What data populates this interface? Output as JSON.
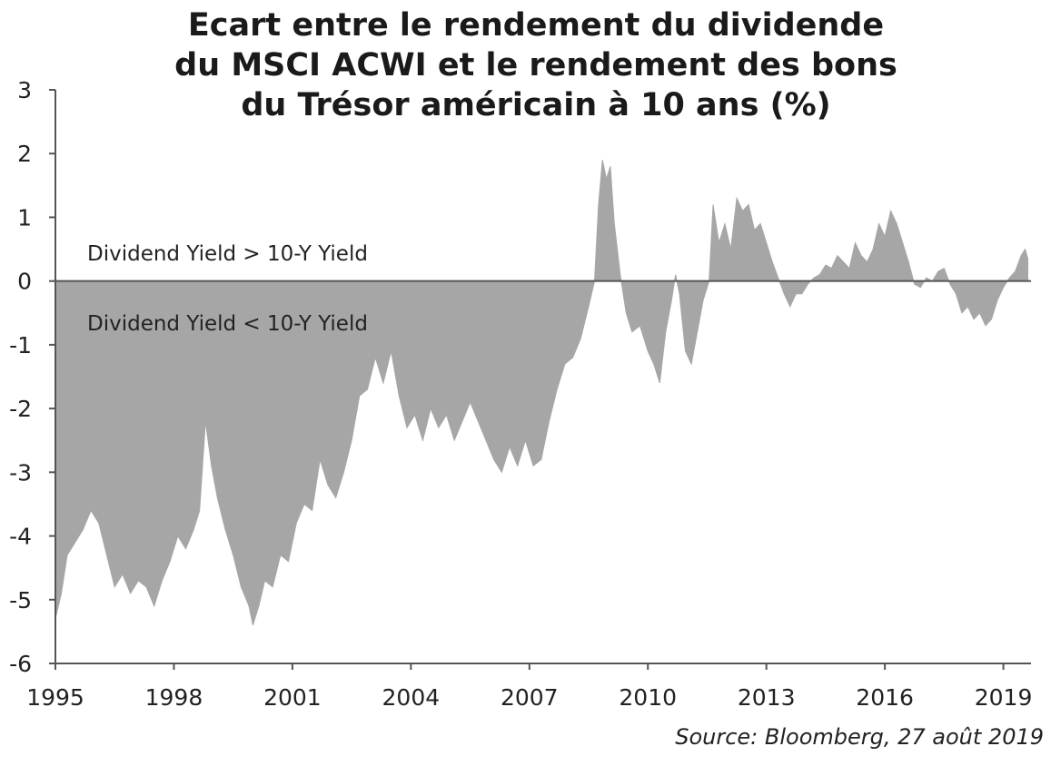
{
  "chart_data": {
    "type": "area",
    "title_lines": [
      "Ecart entre le rendement du dividende",
      "du MSCI ACWI et le rendement des bons",
      "du Trésor américain à 10 ans (%)"
    ],
    "xlabel": "",
    "ylabel": "",
    "x_ticks": [
      "1995",
      "1998",
      "2001",
      "2004",
      "2007",
      "2010",
      "2013",
      "2016",
      "2019"
    ],
    "x_tick_values": [
      1995,
      1998,
      2001,
      2004,
      2007,
      2010,
      2013,
      2016,
      2019
    ],
    "y_ticks": [
      "3",
      "2",
      "1",
      "0",
      "-1",
      "-2",
      "-3",
      "-4",
      "-5",
      "-6"
    ],
    "y_tick_values": [
      3,
      2,
      1,
      0,
      -1,
      -2,
      -3,
      -4,
      -5,
      -6
    ],
    "xlim": [
      1995,
      2019.7
    ],
    "ylim": [
      -6,
      3
    ],
    "annotations": {
      "above": "Dividend Yield > 10-Y Yield",
      "below": "Dividend Yield < 10-Y Yield"
    },
    "series": [
      {
        "fill_color": "#a6a6a6",
        "points": [
          [
            1995.0,
            -5.3
          ],
          [
            1995.15,
            -4.9
          ],
          [
            1995.3,
            -4.3
          ],
          [
            1995.5,
            -4.1
          ],
          [
            1995.7,
            -3.9
          ],
          [
            1995.9,
            -3.6
          ],
          [
            1996.1,
            -3.8
          ],
          [
            1996.3,
            -4.3
          ],
          [
            1996.5,
            -4.8
          ],
          [
            1996.7,
            -4.6
          ],
          [
            1996.9,
            -4.9
          ],
          [
            1997.1,
            -4.7
          ],
          [
            1997.3,
            -4.8
          ],
          [
            1997.5,
            -5.1
          ],
          [
            1997.7,
            -4.7
          ],
          [
            1997.9,
            -4.4
          ],
          [
            1998.1,
            -4.0
          ],
          [
            1998.3,
            -4.2
          ],
          [
            1998.5,
            -3.9
          ],
          [
            1998.65,
            -3.6
          ],
          [
            1998.8,
            -2.2
          ],
          [
            1998.95,
            -2.9
          ],
          [
            1999.1,
            -3.4
          ],
          [
            1999.3,
            -3.9
          ],
          [
            1999.5,
            -4.3
          ],
          [
            1999.7,
            -4.8
          ],
          [
            1999.9,
            -5.1
          ],
          [
            2000.0,
            -5.4
          ],
          [
            2000.15,
            -5.1
          ],
          [
            2000.3,
            -4.7
          ],
          [
            2000.5,
            -4.8
          ],
          [
            2000.7,
            -4.3
          ],
          [
            2000.9,
            -4.4
          ],
          [
            2001.1,
            -3.8
          ],
          [
            2001.3,
            -3.5
          ],
          [
            2001.5,
            -3.6
          ],
          [
            2001.7,
            -2.8
          ],
          [
            2001.9,
            -3.2
          ],
          [
            2002.1,
            -3.4
          ],
          [
            2002.3,
            -3.0
          ],
          [
            2002.5,
            -2.5
          ],
          [
            2002.7,
            -1.8
          ],
          [
            2002.9,
            -1.7
          ],
          [
            2003.1,
            -1.2
          ],
          [
            2003.3,
            -1.6
          ],
          [
            2003.5,
            -1.1
          ],
          [
            2003.7,
            -1.8
          ],
          [
            2003.9,
            -2.3
          ],
          [
            2004.1,
            -2.1
          ],
          [
            2004.3,
            -2.5
          ],
          [
            2004.5,
            -2.0
          ],
          [
            2004.7,
            -2.3
          ],
          [
            2004.9,
            -2.1
          ],
          [
            2005.1,
            -2.5
          ],
          [
            2005.3,
            -2.2
          ],
          [
            2005.5,
            -1.9
          ],
          [
            2005.7,
            -2.2
          ],
          [
            2005.9,
            -2.5
          ],
          [
            2006.1,
            -2.8
          ],
          [
            2006.3,
            -3.0
          ],
          [
            2006.5,
            -2.6
          ],
          [
            2006.7,
            -2.9
          ],
          [
            2006.9,
            -2.5
          ],
          [
            2007.1,
            -2.9
          ],
          [
            2007.3,
            -2.8
          ],
          [
            2007.5,
            -2.2
          ],
          [
            2007.7,
            -1.7
          ],
          [
            2007.9,
            -1.3
          ],
          [
            2008.1,
            -1.2
          ],
          [
            2008.3,
            -0.9
          ],
          [
            2008.5,
            -0.4
          ],
          [
            2008.65,
            0.0
          ],
          [
            2008.75,
            1.2
          ],
          [
            2008.85,
            1.9
          ],
          [
            2008.95,
            1.6
          ],
          [
            2009.05,
            1.8
          ],
          [
            2009.15,
            0.9
          ],
          [
            2009.3,
            0.1
          ],
          [
            2009.45,
            -0.5
          ],
          [
            2009.6,
            -0.8
          ],
          [
            2009.8,
            -0.7
          ],
          [
            2010.0,
            -1.1
          ],
          [
            2010.15,
            -1.3
          ],
          [
            2010.3,
            -1.6
          ],
          [
            2010.45,
            -0.8
          ],
          [
            2010.6,
            -0.3
          ],
          [
            2010.7,
            0.1
          ],
          [
            2010.8,
            -0.2
          ],
          [
            2010.95,
            -1.1
          ],
          [
            2011.1,
            -1.3
          ],
          [
            2011.25,
            -0.8
          ],
          [
            2011.4,
            -0.3
          ],
          [
            2011.55,
            0.0
          ],
          [
            2011.65,
            1.2
          ],
          [
            2011.8,
            0.6
          ],
          [
            2011.95,
            0.9
          ],
          [
            2012.1,
            0.5
          ],
          [
            2012.25,
            1.3
          ],
          [
            2012.4,
            1.1
          ],
          [
            2012.55,
            1.2
          ],
          [
            2012.7,
            0.8
          ],
          [
            2012.85,
            0.9
          ],
          [
            2013.0,
            0.6
          ],
          [
            2013.15,
            0.3
          ],
          [
            2013.3,
            0.05
          ],
          [
            2013.45,
            -0.2
          ],
          [
            2013.6,
            -0.4
          ],
          [
            2013.75,
            -0.2
          ],
          [
            2013.9,
            -0.2
          ],
          [
            2014.05,
            -0.05
          ],
          [
            2014.2,
            0.05
          ],
          [
            2014.35,
            0.1
          ],
          [
            2014.5,
            0.25
          ],
          [
            2014.65,
            0.2
          ],
          [
            2014.8,
            0.4
          ],
          [
            2014.95,
            0.3
          ],
          [
            2015.1,
            0.2
          ],
          [
            2015.25,
            0.6
          ],
          [
            2015.4,
            0.4
          ],
          [
            2015.55,
            0.3
          ],
          [
            2015.7,
            0.5
          ],
          [
            2015.85,
            0.9
          ],
          [
            2016.0,
            0.7
          ],
          [
            2016.15,
            1.1
          ],
          [
            2016.3,
            0.9
          ],
          [
            2016.45,
            0.6
          ],
          [
            2016.6,
            0.3
          ],
          [
            2016.75,
            -0.05
          ],
          [
            2016.9,
            -0.1
          ],
          [
            2017.05,
            0.05
          ],
          [
            2017.2,
            0.0
          ],
          [
            2017.35,
            0.15
          ],
          [
            2017.5,
            0.2
          ],
          [
            2017.65,
            -0.05
          ],
          [
            2017.8,
            -0.2
          ],
          [
            2017.95,
            -0.5
          ],
          [
            2018.1,
            -0.4
          ],
          [
            2018.25,
            -0.6
          ],
          [
            2018.4,
            -0.5
          ],
          [
            2018.55,
            -0.7
          ],
          [
            2018.7,
            -0.6
          ],
          [
            2018.85,
            -0.3
          ],
          [
            2019.0,
            -0.1
          ],
          [
            2019.15,
            0.05
          ],
          [
            2019.3,
            0.15
          ],
          [
            2019.45,
            0.4
          ],
          [
            2019.55,
            0.5
          ],
          [
            2019.62,
            0.35
          ]
        ]
      }
    ]
  },
  "source": "Source: Bloomberg, 27 août 2019"
}
